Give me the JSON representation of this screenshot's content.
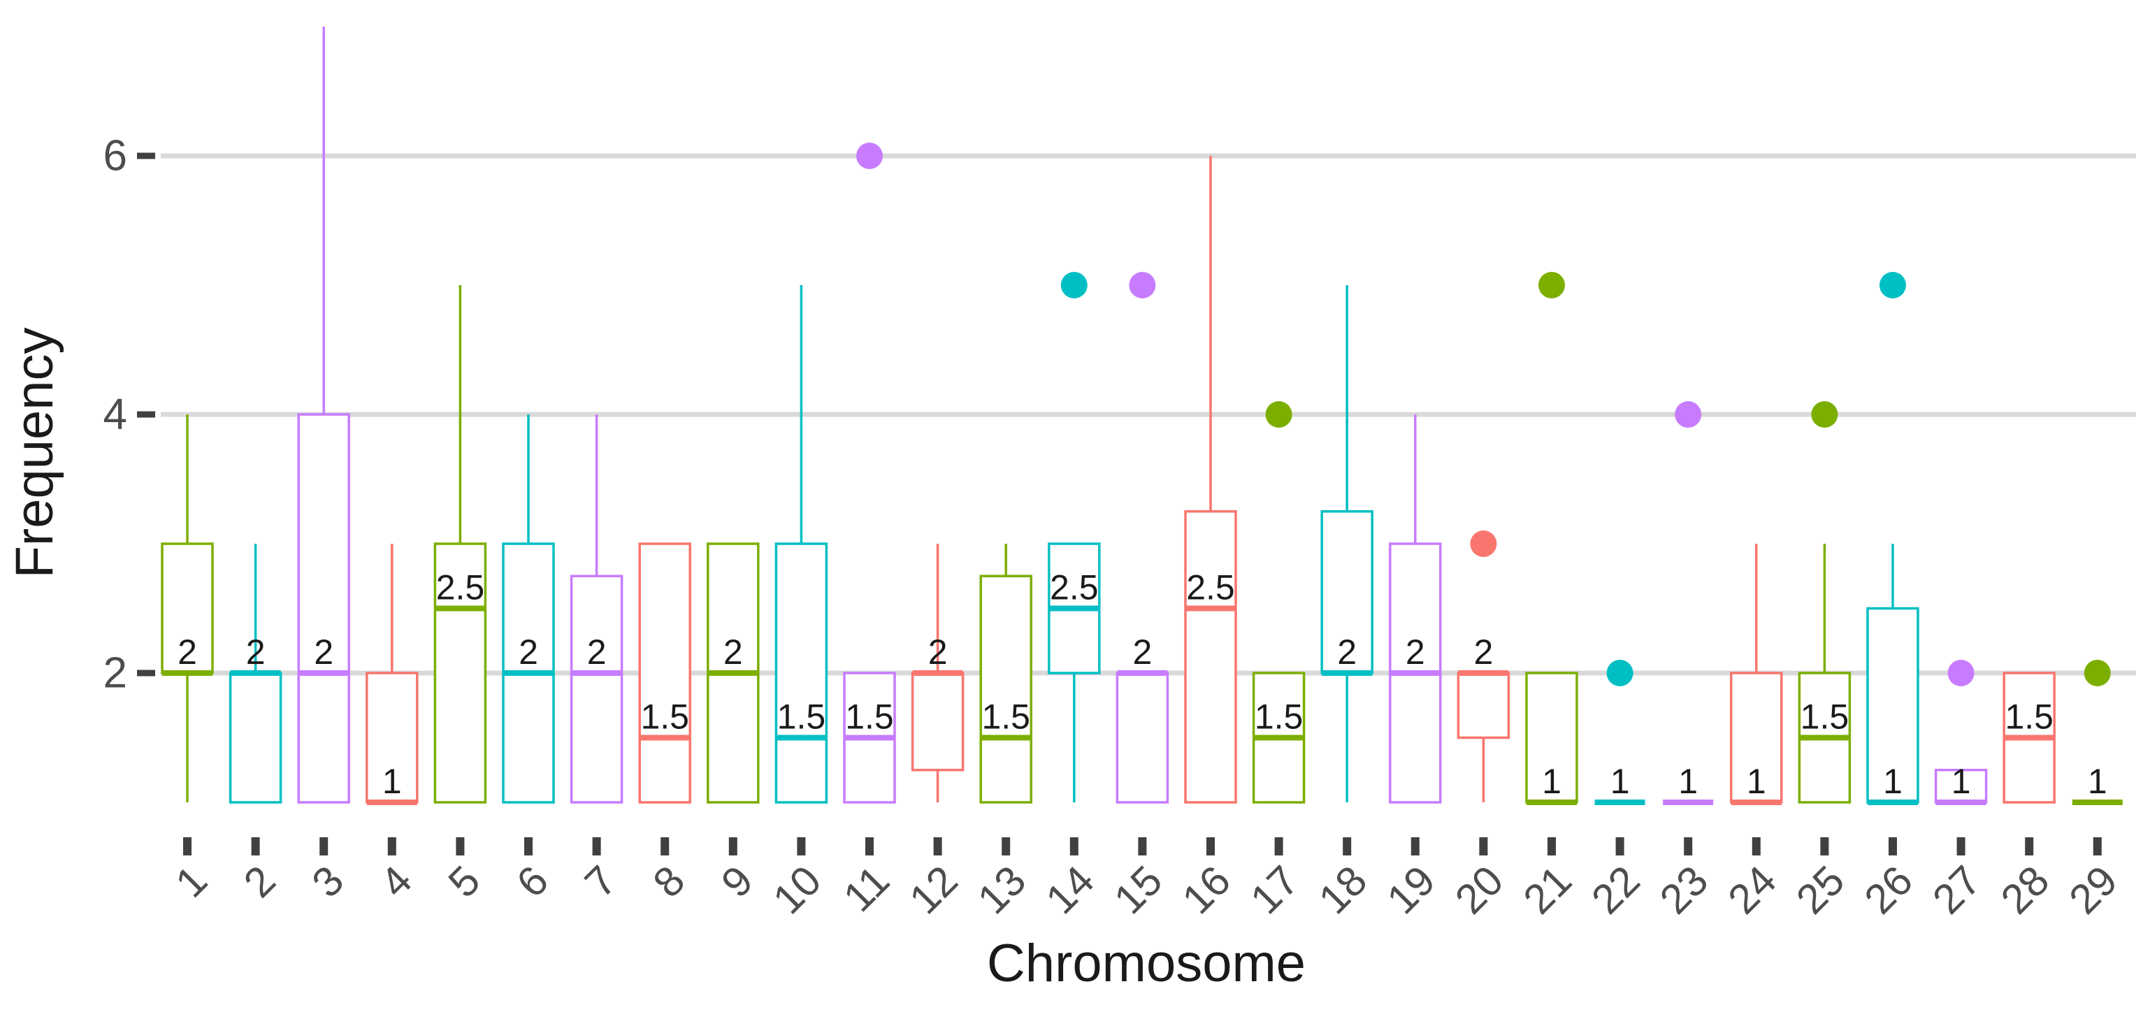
{
  "chart_data": {
    "type": "boxplot",
    "title": "",
    "xlabel": "Chromosome",
    "ylabel": "Frequency",
    "x_categories": [
      "1",
      "2",
      "3",
      "4",
      "5",
      "6",
      "7",
      "8",
      "9",
      "10",
      "11",
      "12",
      "13",
      "14",
      "15",
      "16",
      "17",
      "18",
      "19",
      "20",
      "21",
      "22",
      "23",
      "24",
      "25",
      "26",
      "27",
      "28",
      "29"
    ],
    "y_ticks": [
      2,
      4,
      6
    ],
    "ylim": [
      1,
      7
    ],
    "grid": "horizontal-major-only",
    "legend": "none",
    "background": "#FFFFFF",
    "grid_color": "#D9D9D9",
    "tick_color": "#404040",
    "axis_text_color": "#4D4D4D",
    "title_text_color": "#1A1A1A",
    "median_label_color": "#1A1A1A",
    "palette": {
      "green": "#7CAE00",
      "teal": "#00BFC4",
      "purple": "#C77CFF",
      "red": "#F8766D"
    },
    "color_cycle": [
      "green",
      "teal",
      "purple",
      "red"
    ],
    "series": [
      {
        "chr": "1",
        "color": "green",
        "min": 1,
        "q1": 2,
        "median": 2,
        "q3": 3,
        "max": 4,
        "outliers": [],
        "label": "2"
      },
      {
        "chr": "2",
        "color": "teal",
        "min": 1,
        "q1": 1,
        "median": 2,
        "q3": 2,
        "max": 3,
        "outliers": [],
        "label": "2"
      },
      {
        "chr": "3",
        "color": "purple",
        "min": 1,
        "q1": 1,
        "median": 2,
        "q3": 4,
        "max": 7,
        "outliers": [],
        "label": "2"
      },
      {
        "chr": "4",
        "color": "red",
        "min": 1,
        "q1": 1,
        "median": 1,
        "q3": 2,
        "max": 3,
        "outliers": [],
        "label": "1"
      },
      {
        "chr": "5",
        "color": "green",
        "min": 1,
        "q1": 1,
        "median": 2.5,
        "q3": 3,
        "max": 5,
        "outliers": [],
        "label": "2.5"
      },
      {
        "chr": "6",
        "color": "teal",
        "min": 1,
        "q1": 1,
        "median": 2,
        "q3": 3,
        "max": 4,
        "outliers": [],
        "label": "2"
      },
      {
        "chr": "7",
        "color": "purple",
        "min": 1,
        "q1": 1,
        "median": 2,
        "q3": 2.75,
        "max": 4,
        "outliers": [],
        "label": "2"
      },
      {
        "chr": "8",
        "color": "red",
        "min": 1,
        "q1": 1,
        "median": 1.5,
        "q3": 3,
        "max": 3,
        "outliers": [],
        "label": "1.5"
      },
      {
        "chr": "9",
        "color": "green",
        "min": 1,
        "q1": 1,
        "median": 2,
        "q3": 3,
        "max": 3,
        "outliers": [],
        "label": "2"
      },
      {
        "chr": "10",
        "color": "teal",
        "min": 1,
        "q1": 1,
        "median": 1.5,
        "q3": 3,
        "max": 5,
        "outliers": [],
        "label": "1.5"
      },
      {
        "chr": "11",
        "color": "purple",
        "min": 1,
        "q1": 1,
        "median": 1.5,
        "q3": 2,
        "max": 2,
        "outliers": [
          6
        ],
        "label": "1.5"
      },
      {
        "chr": "12",
        "color": "red",
        "min": 1,
        "q1": 1.25,
        "median": 2,
        "q3": 2,
        "max": 3,
        "outliers": [],
        "label": "2"
      },
      {
        "chr": "13",
        "color": "green",
        "min": 1,
        "q1": 1,
        "median": 1.5,
        "q3": 2.75,
        "max": 3,
        "outliers": [],
        "label": "1.5"
      },
      {
        "chr": "14",
        "color": "teal",
        "min": 1,
        "q1": 2,
        "median": 2.5,
        "q3": 3,
        "max": 3,
        "outliers": [
          5
        ],
        "label": "2.5"
      },
      {
        "chr": "15",
        "color": "purple",
        "min": 1,
        "q1": 1,
        "median": 2,
        "q3": 2,
        "max": 2,
        "outliers": [
          5
        ],
        "label": "2"
      },
      {
        "chr": "16",
        "color": "red",
        "min": 1,
        "q1": 1,
        "median": 2.5,
        "q3": 3.25,
        "max": 6,
        "outliers": [],
        "label": "2.5"
      },
      {
        "chr": "17",
        "color": "green",
        "min": 1,
        "q1": 1,
        "median": 1.5,
        "q3": 2,
        "max": 2,
        "outliers": [
          4
        ],
        "label": "1.5"
      },
      {
        "chr": "18",
        "color": "teal",
        "min": 1,
        "q1": 2,
        "median": 2,
        "q3": 3.25,
        "max": 5,
        "outliers": [],
        "label": "2"
      },
      {
        "chr": "19",
        "color": "purple",
        "min": 1,
        "q1": 1,
        "median": 2,
        "q3": 3,
        "max": 4,
        "outliers": [],
        "label": "2"
      },
      {
        "chr": "20",
        "color": "red",
        "min": 1,
        "q1": 1.5,
        "median": 2,
        "q3": 2,
        "max": 2,
        "outliers": [
          3
        ],
        "label": "2"
      },
      {
        "chr": "21",
        "color": "green",
        "min": 1,
        "q1": 1,
        "median": 1,
        "q3": 2,
        "max": 2,
        "outliers": [
          5
        ],
        "label": "1"
      },
      {
        "chr": "22",
        "color": "teal",
        "min": 1,
        "q1": 1,
        "median": 1,
        "q3": 1,
        "max": 1,
        "outliers": [
          2
        ],
        "label": "1"
      },
      {
        "chr": "23",
        "color": "purple",
        "min": 1,
        "q1": 1,
        "median": 1,
        "q3": 1,
        "max": 1,
        "outliers": [
          4
        ],
        "label": "1"
      },
      {
        "chr": "24",
        "color": "red",
        "min": 1,
        "q1": 1,
        "median": 1,
        "q3": 2,
        "max": 3,
        "outliers": [],
        "label": "1"
      },
      {
        "chr": "25",
        "color": "green",
        "min": 1,
        "q1": 1,
        "median": 1.5,
        "q3": 2,
        "max": 3,
        "outliers": [
          4
        ],
        "label": "1.5"
      },
      {
        "chr": "26",
        "color": "teal",
        "min": 1,
        "q1": 1,
        "median": 1,
        "q3": 2.5,
        "max": 3,
        "outliers": [
          5
        ],
        "label": "1"
      },
      {
        "chr": "27",
        "color": "purple",
        "min": 1,
        "q1": 1,
        "median": 1,
        "q3": 1.25,
        "max": 1.25,
        "outliers": [
          2
        ],
        "label": "1"
      },
      {
        "chr": "28",
        "color": "red",
        "min": 1,
        "q1": 1,
        "median": 1.5,
        "q3": 2,
        "max": 2,
        "outliers": [],
        "label": "1.5"
      },
      {
        "chr": "29",
        "color": "green",
        "min": 1,
        "q1": 1,
        "median": 1,
        "q3": 1,
        "max": 1,
        "outliers": [
          2
        ],
        "label": "1"
      }
    ]
  }
}
